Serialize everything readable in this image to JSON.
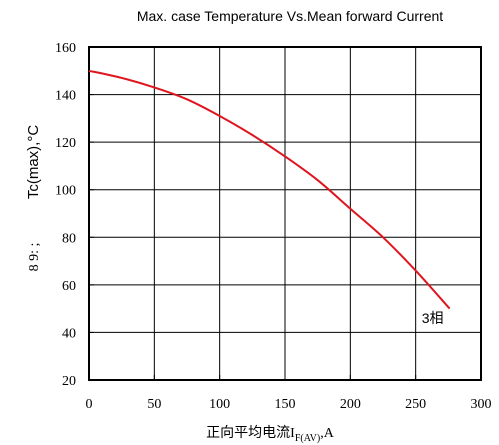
{
  "chart_data": {
    "type": "line",
    "title": "Max. case Temperature Vs.Mean forward Current",
    "xlabel": {
      "main": "正向平均电流I",
      "sub": "F(AV)",
      "suffix": ",A"
    },
    "ylabel": "Tc(max),°C",
    "ylabel_extra": "8 9: ;",
    "xlim": [
      0,
      300
    ],
    "ylim": [
      20,
      160
    ],
    "x_ticks": [
      "0",
      "50",
      "100",
      "150",
      "200",
      "250",
      "300"
    ],
    "y_ticks": [
      "20",
      "40",
      "60",
      "80",
      "100",
      "120",
      "140",
      "160"
    ],
    "grid": true,
    "series": [
      {
        "color": "#e0141e",
        "x": [
          0,
          25,
          50,
          75,
          100,
          125,
          150,
          175,
          200,
          225,
          250,
          276
        ],
        "y": [
          150,
          147,
          143,
          138,
          131,
          123,
          114,
          104,
          92,
          80,
          66,
          50
        ]
      }
    ],
    "annotations": [
      {
        "text": "3相",
        "x": 263,
        "y": 46
      }
    ]
  }
}
